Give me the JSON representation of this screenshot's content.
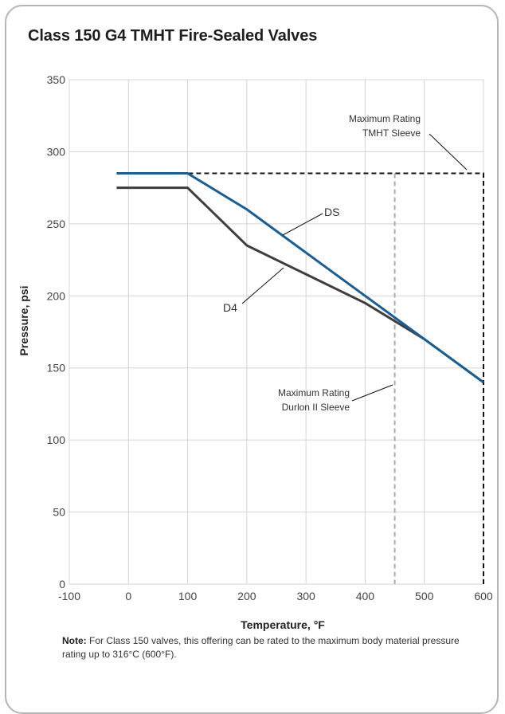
{
  "title": "Class 150 G4 TMHT Fire-Sealed Valves",
  "note": {
    "prefix": "Note:",
    "text": "For Class 150 valves, this offering can be rated to the maximum body material pressure rating up to 316°C (600°F)."
  },
  "chart_data": {
    "type": "line",
    "title": "Class 150 G4 TMHT Fire-Sealed Valves",
    "xlabel": "Temperature, °F",
    "ylabel": "Pressure, psi",
    "xlim": [
      -100,
      600
    ],
    "ylim": [
      0,
      350
    ],
    "xticks": [
      -100,
      0,
      100,
      200,
      300,
      400,
      500,
      600
    ],
    "yticks": [
      0,
      50,
      100,
      150,
      200,
      250,
      300,
      350
    ],
    "grid": true,
    "series": [
      {
        "name": "DS",
        "color": "#1a5e93",
        "x": [
          -20,
          100,
          200,
          300,
          400,
          500,
          600
        ],
        "y": [
          285,
          285,
          260,
          230,
          200,
          170,
          140
        ]
      },
      {
        "name": "D4",
        "color": "#3f3d3d",
        "x": [
          -20,
          100,
          200,
          300,
          400,
          500,
          600
        ],
        "y": [
          275,
          275,
          235,
          215,
          195,
          170,
          140
        ]
      }
    ],
    "reference_lines": [
      {
        "label_lines": [
          "Maximum Rating",
          "TMHT Sleeve"
        ],
        "color": "#111111",
        "style": "dashed",
        "path": [
          [
            -20,
            285
          ],
          [
            600,
            285
          ],
          [
            600,
            0
          ]
        ]
      },
      {
        "label_lines": [
          "Maximum Rating",
          "Durlon II Sleeve"
        ],
        "color": "#aaaaaa",
        "style": "dashed",
        "path": [
          [
            450,
            285
          ],
          [
            450,
            0
          ]
        ]
      }
    ]
  }
}
